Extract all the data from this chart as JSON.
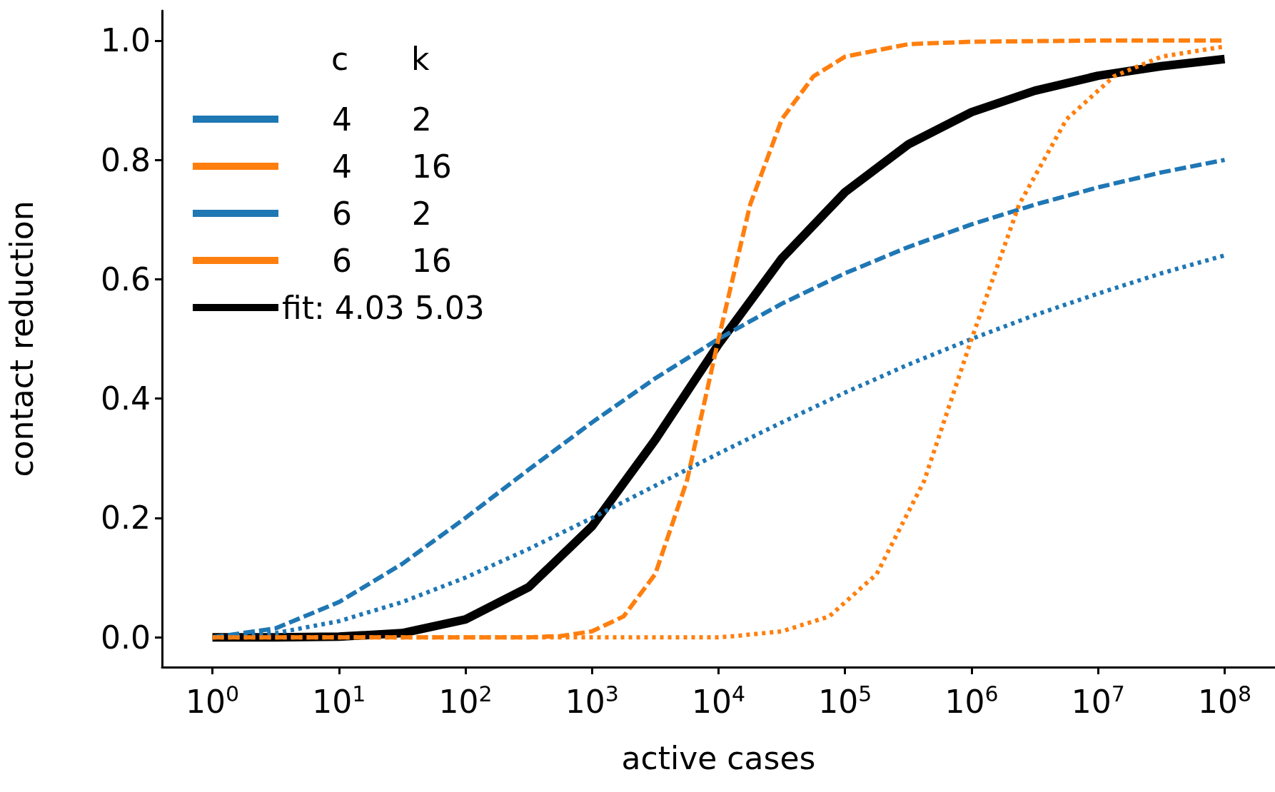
{
  "chart_data": {
    "type": "line",
    "xlabel": "active cases",
    "ylabel": "contact reduction",
    "legend_title": "c k",
    "legend": "top left",
    "log": "x",
    "grid": false,
    "marker": "none",
    "xlim": [
      0.4,
      250000000
    ],
    "ylim": [
      -0.05,
      1.05
    ],
    "xticks": [
      {
        "value": 1,
        "label": "10$^{0}$"
      },
      {
        "value": 10,
        "label": "10$^{1}$"
      },
      {
        "value": 100,
        "label": "10$^{2}$"
      },
      {
        "value": 1000,
        "label": "10$^{3}$"
      },
      {
        "value": 10000,
        "label": "10$^{4}$"
      },
      {
        "value": 100000,
        "label": "10$^{5}$"
      },
      {
        "value": 1000000,
        "label": "10$^{6}$"
      },
      {
        "value": 10000000,
        "label": "10$^{7}$"
      },
      {
        "value": 100000000,
        "label": "10$^{8}$"
      }
    ],
    "yticks": [
      {
        "value": 0,
        "label": "0.0"
      },
      {
        "value": 0.2,
        "label": "0.2"
      },
      {
        "value": 0.4,
        "label": "0.4"
      },
      {
        "value": 0.6,
        "label": "0.6"
      },
      {
        "value": 0.8,
        "label": "0.8"
      },
      {
        "value": 1,
        "label": "1.0"
      }
    ],
    "series": [
      {
        "name": "4 2",
        "color": "#1f77b4",
        "line_style": "dashed",
        "x": [
          1,
          3.16,
          10,
          31.6,
          100,
          316,
          1000,
          3162,
          10000,
          31623,
          100000,
          316228,
          1000000,
          3162278,
          10000000,
          31622777,
          100000000
        ],
        "values": [
          0,
          0.015,
          0.059,
          0.123,
          0.2,
          0.281,
          0.36,
          0.434,
          0.5,
          0.559,
          0.61,
          0.654,
          0.692,
          0.725,
          0.754,
          0.779,
          0.8
        ]
      },
      {
        "name": "4 16",
        "color": "#ff7f0e",
        "line_style": "dashed",
        "x": [
          1,
          10,
          100,
          316,
          562,
          1000,
          1778,
          3162,
          5623,
          10000,
          17783,
          31623,
          56234,
          100000,
          316228,
          1000000,
          10000000,
          100000000
        ],
        "values": [
          0,
          0,
          0,
          0,
          0.002,
          0.01,
          0.035,
          0.106,
          0.262,
          0.5,
          0.725,
          0.868,
          0.94,
          0.973,
          0.994,
          0.998,
          1,
          1
        ]
      },
      {
        "name": "6 2",
        "color": "#1f77b4",
        "line_style": "dotted",
        "x": [
          1,
          3.16,
          10,
          31.6,
          100,
          316,
          1000,
          3162,
          10000,
          31623,
          100000,
          316228,
          1000000,
          3162278,
          10000000,
          31622777,
          100000000
        ],
        "values": [
          0,
          0.007,
          0.027,
          0.059,
          0.1,
          0.148,
          0.2,
          0.254,
          0.308,
          0.36,
          0.41,
          0.457,
          0.5,
          0.54,
          0.576,
          0.61,
          0.64
        ]
      },
      {
        "name": "6 16",
        "color": "#ff7f0e",
        "line_style": "dotted",
        "x": [
          1,
          100,
          1000,
          10000,
          13335,
          31623,
          75000,
          177828,
          421697,
          1000000,
          2371374,
          5623413,
          13335214,
          31622777,
          100000000
        ],
        "values": [
          0,
          0,
          0,
          0,
          0.002,
          0.01,
          0.035,
          0.106,
          0.262,
          0.5,
          0.725,
          0.868,
          0.94,
          0.973,
          0.99
        ]
      },
      {
        "name": "fit: 4.03 5.03",
        "color": "#000000",
        "line_style": "solid",
        "x": [
          1,
          3.16,
          10,
          31.6,
          100,
          316,
          1000,
          3162,
          10000,
          31623,
          100000,
          316228,
          1000000,
          3162278,
          10000000,
          31622777,
          100000000
        ],
        "values": [
          0,
          0,
          0.001,
          0.007,
          0.03,
          0.084,
          0.186,
          0.331,
          0.491,
          0.635,
          0.746,
          0.826,
          0.88,
          0.916,
          0.941,
          0.957,
          0.969
        ]
      }
    ]
  }
}
